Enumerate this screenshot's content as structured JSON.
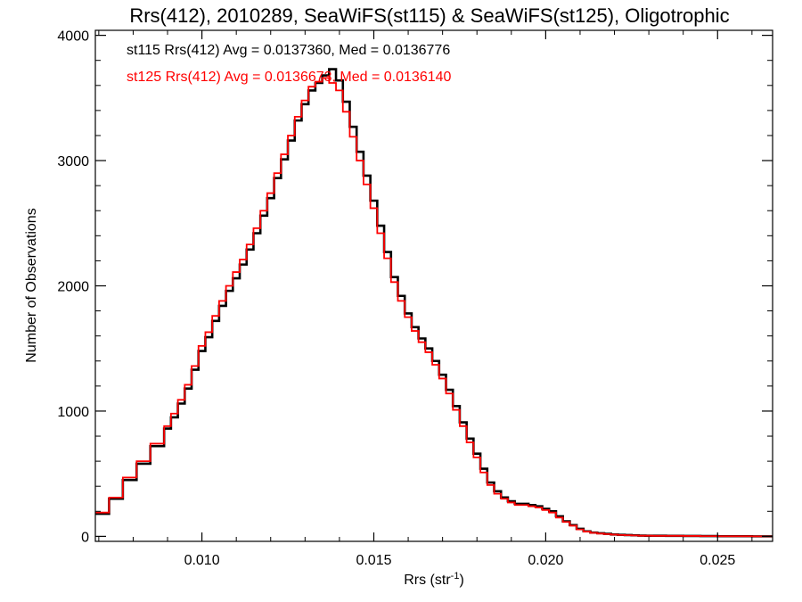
{
  "chart_data": {
    "type": "line",
    "title": "Rrs(412), 2010289, SeaWiFS(st115) & SeaWiFS(st125), Oligotrophic",
    "xlabel": "Rrs (str",
    "xlabel_sup": "-1",
    "xlabel_close": ")",
    "ylabel": "Number of Observations",
    "xlim": [
      0.0069,
      0.0266
    ],
    "ylim": [
      -40,
      4040
    ],
    "xticks": [
      0.01,
      0.015,
      0.02,
      0.025
    ],
    "xtick_labels": [
      "0.010",
      "0.015",
      "0.020",
      "0.025"
    ],
    "yticks": [
      0,
      1000,
      2000,
      3000,
      4000
    ],
    "ytick_labels": [
      "0",
      "1000",
      "2000",
      "3000",
      "4000"
    ],
    "legend_position": "top-left",
    "x": [
      0.0069,
      0.0073,
      0.0077,
      0.0081,
      0.0085,
      0.0089,
      0.0091,
      0.0093,
      0.0095,
      0.0097,
      0.0099,
      0.0101,
      0.0103,
      0.0105,
      0.0107,
      0.0109,
      0.0111,
      0.0113,
      0.0115,
      0.0117,
      0.0119,
      0.0121,
      0.0123,
      0.0125,
      0.0127,
      0.0129,
      0.0131,
      0.0133,
      0.0135,
      0.0137,
      0.0139,
      0.0141,
      0.0143,
      0.0145,
      0.0147,
      0.0149,
      0.0151,
      0.0153,
      0.0155,
      0.0157,
      0.0159,
      0.0161,
      0.0163,
      0.0165,
      0.0167,
      0.0169,
      0.0171,
      0.0173,
      0.0175,
      0.0177,
      0.0179,
      0.0181,
      0.0183,
      0.0185,
      0.0187,
      0.0189,
      0.0191,
      0.0193,
      0.0195,
      0.0197,
      0.0199,
      0.0201,
      0.0203,
      0.0205,
      0.0207,
      0.0209,
      0.0211,
      0.0213,
      0.0215,
      0.0217,
      0.0219,
      0.0221,
      0.0223,
      0.0225,
      0.0227,
      0.0229,
      0.0231,
      0.0235,
      0.024,
      0.0245,
      0.025,
      0.0255,
      0.026,
      0.0266
    ],
    "series": [
      {
        "name": "st115",
        "color": "#000000",
        "legend_text": "st115 Rrs(412) Avg = 0.0137360, Med = 0.0136776",
        "values": [
          180,
          300,
          450,
          580,
          720,
          860,
          950,
          1060,
          1180,
          1330,
          1480,
          1590,
          1720,
          1840,
          1960,
          2060,
          2170,
          2290,
          2420,
          2560,
          2700,
          2860,
          3010,
          3160,
          3320,
          3450,
          3560,
          3620,
          3680,
          3730,
          3640,
          3470,
          3270,
          3070,
          2880,
          2680,
          2480,
          2270,
          2070,
          1920,
          1780,
          1670,
          1580,
          1500,
          1400,
          1290,
          1170,
          1040,
          910,
          780,
          660,
          540,
          430,
          360,
          310,
          280,
          260,
          260,
          250,
          240,
          220,
          200,
          160,
          120,
          90,
          60,
          40,
          30,
          25,
          20,
          15,
          12,
          10,
          8,
          6,
          5,
          5,
          4,
          3,
          2,
          1,
          1,
          0,
          0
        ]
      },
      {
        "name": "st125",
        "color": "#ff0000",
        "legend_text": "st125 Rrs(412) Avg = 0.0136673, Med = 0.0136140",
        "values": [
          190,
          310,
          470,
          600,
          740,
          880,
          980,
          1090,
          1210,
          1360,
          1520,
          1630,
          1760,
          1880,
          2000,
          2110,
          2210,
          2330,
          2460,
          2600,
          2740,
          2900,
          3050,
          3200,
          3350,
          3480,
          3590,
          3630,
          3660,
          3620,
          3560,
          3390,
          3190,
          3000,
          2810,
          2620,
          2420,
          2220,
          2030,
          1880,
          1750,
          1640,
          1550,
          1470,
          1370,
          1260,
          1140,
          1010,
          880,
          750,
          630,
          510,
          410,
          340,
          300,
          270,
          250,
          250,
          240,
          230,
          210,
          190,
          150,
          115,
          85,
          55,
          38,
          28,
          22,
          18,
          14,
          11,
          9,
          7,
          5,
          5,
          4,
          4,
          3,
          2,
          1,
          1,
          0,
          0
        ]
      }
    ]
  }
}
